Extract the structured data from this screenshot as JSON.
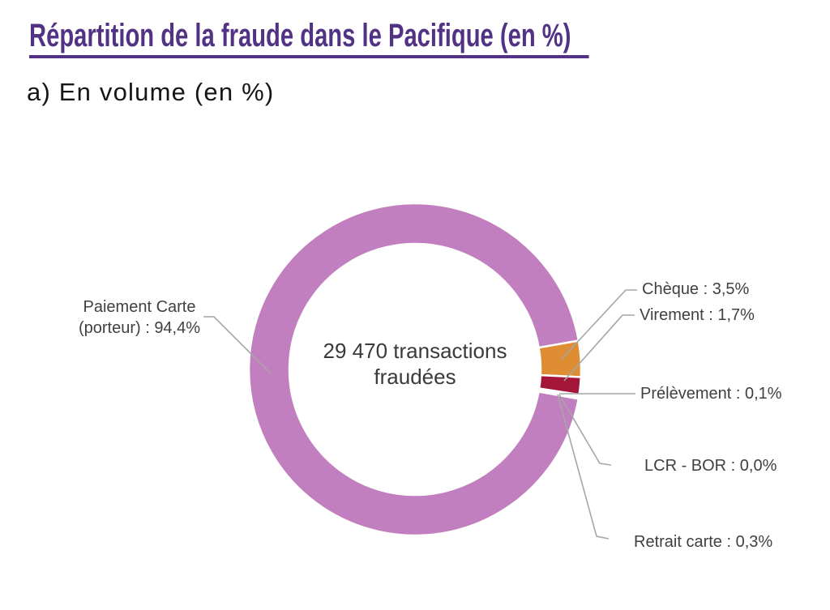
{
  "header": {
    "title": "Répartition de la fraude dans le Pacifique (en %)",
    "subtitle": "a) En volume (en %)",
    "title_color": "#523285"
  },
  "chart_data": {
    "type": "pie",
    "subtype": "donut",
    "title": "Répartition de la fraude dans le Pacifique (en %)",
    "units": "%",
    "center_label": "29 470 transactions\nfraudées",
    "total_label": "29 470 transactions fraudées",
    "start_angle_deg": 100.2,
    "direction": "clockwise",
    "legend_position": "callouts",
    "leader_line_color": "#a6a6a6",
    "label_color": "#404040",
    "segments": [
      {
        "label": "Paiement Carte (porteur)",
        "value": 94.4,
        "color": "#c27fbf",
        "callout": "Paiement Carte\n(porteur) : 94,4%"
      },
      {
        "label": "Chèque",
        "value": 3.5,
        "color": "#de8d33",
        "callout": "Chèque : 3,5%"
      },
      {
        "label": "Virement",
        "value": 1.7,
        "color": "#a31638",
        "callout": "Virement : 1,7%"
      },
      {
        "label": "Prélèvement",
        "value": 0.1,
        "color": "#ffffff",
        "callout": "Prélèvement : 0,1%"
      },
      {
        "label": "LCR - BOR",
        "value": 0.0,
        "color": "#ffffff",
        "callout": "LCR - BOR : 0,0%"
      },
      {
        "label": "Retrait carte",
        "value": 0.3,
        "color": "#ffffff",
        "callout": "Retrait carte : 0,3%"
      }
    ]
  }
}
